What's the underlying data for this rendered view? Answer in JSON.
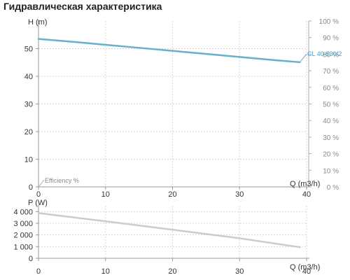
{
  "page_title": "Гидравлическая характеристика",
  "chart_data": [
    {
      "type": "line",
      "xlabel": "Q (m3/h)",
      "ylabel": "H (m)",
      "xlim": [
        0,
        40
      ],
      "ylim": [
        0,
        60
      ],
      "xticks": [
        0,
        10,
        20,
        30,
        40
      ],
      "yticks": [
        0,
        10,
        20,
        30,
        40,
        50
      ],
      "y2label": "Efficiency %",
      "y2ticks": [
        "0 %",
        "10 %",
        "20 %",
        "30 %",
        "40 %",
        "50 %",
        "60 %",
        "70 %",
        "80 %",
        "90 %",
        "100 %"
      ],
      "grid": true,
      "series": [
        {
          "name": "CL 40-530/2",
          "color": "#6aafcc",
          "x": [
            0,
            5,
            10,
            15,
            20,
            25,
            30,
            35,
            39
          ],
          "y": [
            53.5,
            52.5,
            51.4,
            50.3,
            49.2,
            48.1,
            47.0,
            45.9,
            45.1
          ]
        }
      ]
    },
    {
      "type": "line",
      "xlabel": "Q (m3/h)",
      "ylabel": "P (W)",
      "xlim": [
        0,
        40
      ],
      "ylim": [
        0,
        4500
      ],
      "xticks": [
        0,
        10,
        20,
        30,
        40
      ],
      "yticks": [
        "0",
        "1 000",
        "2 000",
        "3 000",
        "4 000"
      ],
      "ytick_values": [
        0,
        1000,
        2000,
        3000,
        4000
      ],
      "grid": true,
      "series": [
        {
          "color": "#cccccc",
          "x": [
            0,
            10,
            20,
            30,
            39
          ],
          "y": [
            3880,
            3170,
            2450,
            1720,
            950
          ]
        }
      ]
    }
  ]
}
